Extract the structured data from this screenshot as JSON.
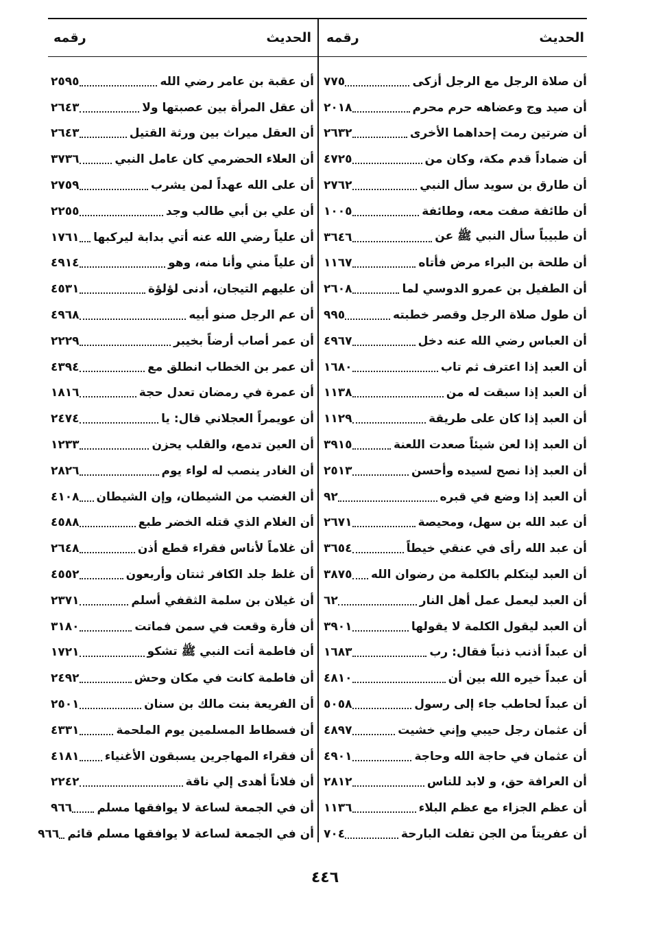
{
  "columns": [
    {
      "header": {
        "hadith": "الحديث",
        "number": "رقمه"
      },
      "entries": [
        {
          "text": "أن صلاة الرجل مع الرجل أزكى",
          "number": "٧٧٥"
        },
        {
          "text": "أن صيد وج وعضاهه حرم محرم",
          "number": "٢٠١٨"
        },
        {
          "text": "أن ضرتين رمت إحداهما الأخرى",
          "number": "٢٦٣٢"
        },
        {
          "text": "أن ضماداً قدم مكة، وكان من",
          "number": "٤٧٢٥"
        },
        {
          "text": "أن طارق بن سويد سأل النبي",
          "number": "٢٧٦٢"
        },
        {
          "text": "أن طائفة صفت معه، وطائفة",
          "number": "١٠٠٥"
        },
        {
          "text": "أن طبيباً سأل النبي ﷺ عن",
          "number": "٣٦٤٦"
        },
        {
          "text": "أن طلحة بن البراء مرض فأتاه",
          "number": "١١٦٧"
        },
        {
          "text": "أن الطفيل بن عمرو الدوسي لما",
          "number": "٢٦٠٨"
        },
        {
          "text": "أن طول صلاة الرجل وقصر خطبته",
          "number": "٩٩٥"
        },
        {
          "text": "أن العباس رضي الله عنه دخل",
          "number": "٤٩٦٧"
        },
        {
          "text": "أن العبد إذا اعترف ثم تاب",
          "number": "١٦٨٠"
        },
        {
          "text": "أن العبد إذا سبقت له من",
          "number": "١١٣٨"
        },
        {
          "text": "أن العبد إذا كان على طريقة",
          "number": "١١٢٩"
        },
        {
          "text": "أن العبد إذا لعن شيئاً صعدت اللعنة",
          "number": "٣٩١٥"
        },
        {
          "text": "أن العبد إذا نصح لسيده وأحسن",
          "number": "٢٥١٣"
        },
        {
          "text": "أن العبد إذا وضع في قبره",
          "number": "٩٢"
        },
        {
          "text": "أن عبد الله بن سهل، ومحيصة",
          "number": "٢٦٧١"
        },
        {
          "text": "أن عبد الله رأى في عنقي خيطاً",
          "number": "٣٦٥٤"
        },
        {
          "text": "أن العبد ليتكلم بالكلمة من رضوان الله",
          "number": "٣٨٧٥"
        },
        {
          "text": "أن العبد ليعمل عمل أهل النار",
          "number": "٦٢"
        },
        {
          "text": "أن العبد ليقول الكلمة لا يقولها",
          "number": "٣٩٠١"
        },
        {
          "text": "أن عبداً أذنب ذنباً فقال: رب",
          "number": "١٦٨٣"
        },
        {
          "text": "أن عبداً خيره الله بين أن",
          "number": "٤٨١٠"
        },
        {
          "text": "أن عبداً لحاطب جاء إلى رسول",
          "number": "٥٠٥٨"
        },
        {
          "text": "أن عثمان رجل حيبي وإني خشيت",
          "number": "٤٨٩٧"
        },
        {
          "text": "أن عثمان في حاجة الله وحاجة",
          "number": "٤٩٠١"
        },
        {
          "text": "أن العرافة حق، و لابد للناس",
          "number": "٢٨١٢"
        },
        {
          "text": "أن عظم الجزاء مع عظم البلاء",
          "number": "١١٣٦"
        },
        {
          "text": "أن عفريتاً من الجن تفلت البارحة",
          "number": "٧٠٤"
        }
      ]
    },
    {
      "header": {
        "hadith": "الحديث",
        "number": "رقمه"
      },
      "entries": [
        {
          "text": "أن عقبة بن عامر رضي الله",
          "number": "٢٥٩٥"
        },
        {
          "text": "أن عقل المرأة بين عصبتها ولا",
          "number": "٢٦٤٣"
        },
        {
          "text": "أن العقل ميراث بين ورثة القتيل",
          "number": "٢٦٤٣"
        },
        {
          "text": "أن العلاء الحضرمي كان عامل النبي",
          "number": "٣٧٣٦"
        },
        {
          "text": "أن على الله عهداً لمن يشرب",
          "number": "٢٧٥٩"
        },
        {
          "text": "أن علي بن أبي طالب وجد",
          "number": "٢٢٥٥"
        },
        {
          "text": "أن علياً رضي الله عنه أتي بدابة ليركبها",
          "number": "١٧٦١"
        },
        {
          "text": "أن علياً مني وأنا منه، وهو",
          "number": "٤٩١٤"
        },
        {
          "text": "أن عليهم التيجان، أدنى لؤلؤة",
          "number": "٤٥٣١"
        },
        {
          "text": "أن عم الرجل صنو أبيه",
          "number": "٤٩٦٨"
        },
        {
          "text": "أن عمر أصاب أرضاً بخيبر",
          "number": "٢٢٢٩"
        },
        {
          "text": "أن عمر بن الخطاب انطلق مع",
          "number": "٤٣٩٤"
        },
        {
          "text": "أن عمرة في رمضان تعدل حجة",
          "number": "١٨١٦"
        },
        {
          "text": "أن عويمراً العجلاني قال: يا",
          "number": "٢٤٧٤"
        },
        {
          "text": "أن العين تدمع، والقلب يحزن",
          "number": "١٢٣٣"
        },
        {
          "text": "أن الغادر ينصب له لواء يوم",
          "number": "٢٨٢٦"
        },
        {
          "text": "أن الغضب من الشيطان، وإن الشيطان",
          "number": "٤١٠٨"
        },
        {
          "text": "أن الغلام الذي قتله الخضر طبع",
          "number": "٤٥٨٨"
        },
        {
          "text": "أن غلاماً لأناس فقراء قطع أذن",
          "number": "٢٦٤٨"
        },
        {
          "text": "أن غلظ جلد الكافر ثنتان وأربعون",
          "number": "٤٥٥٢"
        },
        {
          "text": "أن غيلان بن سلمة الثقفي أسلم",
          "number": "٢٣٧١"
        },
        {
          "text": "أن فأرة وقعت في سمن فماتت",
          "number": "٣١٨٠"
        },
        {
          "text": "أن فاطمة أتت النبي ﷺ تشكو",
          "number": "١٧٢١"
        },
        {
          "text": "أن فاطمة كانت في مكان وحش",
          "number": "٢٤٩٢"
        },
        {
          "text": "أن الفريعة بنت مالك بن سنان",
          "number": "٢٥٠١"
        },
        {
          "text": "أن فسطاط المسلمين يوم الملحمة",
          "number": "٤٣٣١"
        },
        {
          "text": "أن فقراء المهاجرين يسبقون الأغنياء",
          "number": "٤١٨١"
        },
        {
          "text": "أن فلاناً أهدى إلي ناقة",
          "number": "٢٢٤٢"
        },
        {
          "text": "أن في الجمعة لساعة لا يوافقها مسلم",
          "number": "٩٦٦"
        },
        {
          "text": "أن في الجمعة لساعة لا يوافقها مسلم قائم",
          "number": "٩٦٦"
        }
      ]
    }
  ],
  "page_number": "٤٤٦"
}
